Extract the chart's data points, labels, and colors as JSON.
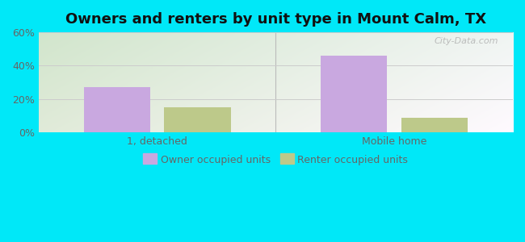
{
  "title": "Owners and renters by unit type in Mount Calm, TX",
  "categories": [
    "1, detached",
    "Mobile home"
  ],
  "owner_values": [
    27,
    46
  ],
  "renter_values": [
    15,
    9
  ],
  "owner_color": "#c9a8e0",
  "renter_color": "#bdc98a",
  "ylim": [
    0,
    60
  ],
  "yticks": [
    0,
    20,
    40,
    60
  ],
  "ytick_labels": [
    "0%",
    "20%",
    "40%",
    "60%"
  ],
  "bar_width": 0.28,
  "background_outer": "#00e8f8",
  "background_plot_topleft": "#c8e8c0",
  "background_plot_botright": "#e8f5f0",
  "watermark": "City-Data.com",
  "legend_owner": "Owner occupied units",
  "legend_renter": "Renter occupied units",
  "title_fontsize": 13,
  "tick_fontsize": 9,
  "legend_fontsize": 9,
  "grid_color": "#cccccc",
  "tick_color": "#666666",
  "separator_color": "#bbbbbb"
}
